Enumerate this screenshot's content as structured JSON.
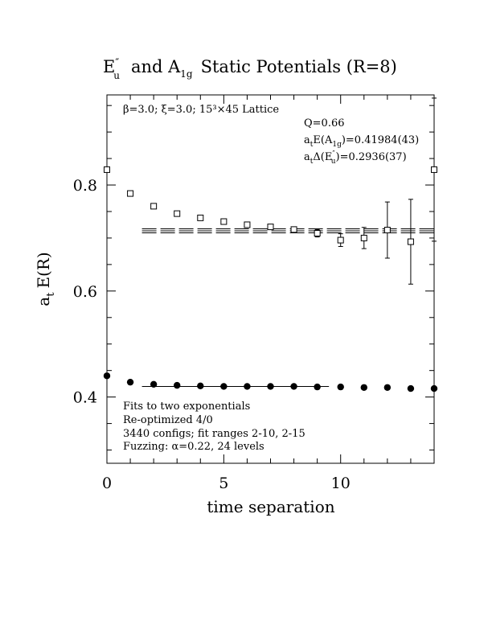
{
  "chart_data": {
    "type": "scatter",
    "title": {
      "main": "E",
      "main_prime": "″",
      "main_sub": "u",
      "mid": "and A",
      "mid_sub": "1g",
      "tail": "Static Potentials (R=8)"
    },
    "xlabel": "time separation",
    "ylabel": {
      "a": "a",
      "sub": "t",
      "rest": "E(R)"
    },
    "xlim": [
      0,
      14
    ],
    "ylim": [
      0.275,
      0.97
    ],
    "xticks": [
      0,
      5,
      10
    ],
    "xtick_labels": [
      "0",
      "5",
      "10"
    ],
    "yticks": [
      0.4,
      0.6,
      0.8
    ],
    "ytick_labels": [
      "0.4",
      "0.6",
      "0.8"
    ],
    "series": [
      {
        "marker": "open-square",
        "x": [
          0,
          1,
          2,
          3,
          4,
          5,
          6,
          7,
          8,
          9,
          10,
          11,
          12,
          13,
          14
        ],
        "y": [
          0.829,
          0.784,
          0.76,
          0.746,
          0.738,
          0.731,
          0.725,
          0.721,
          0.716,
          0.709,
          0.696,
          0.7,
          0.715,
          0.693,
          0.829
        ],
        "err": [
          0.002,
          0.002,
          0.002,
          0.003,
          0.003,
          0.003,
          0.003,
          0.004,
          0.005,
          0.007,
          0.012,
          0.02,
          0.053,
          0.08,
          0.135
        ]
      },
      {
        "marker": "filled-circle",
        "x": [
          0,
          1,
          2,
          3,
          4,
          5,
          6,
          7,
          8,
          9,
          10,
          11,
          12,
          13,
          14
        ],
        "y": [
          0.44,
          0.428,
          0.424,
          0.422,
          0.421,
          0.42,
          0.42,
          0.42,
          0.42,
          0.419,
          0.419,
          0.418,
          0.418,
          0.416,
          0.416
        ],
        "err": [
          0,
          0,
          0,
          0,
          0,
          0,
          0,
          0,
          0,
          0,
          0,
          0,
          0,
          0,
          0
        ]
      }
    ],
    "fit_lines": [
      {
        "style": "dashed-band",
        "y": 0.7136,
        "band": 0.0038,
        "x_range": [
          1.5,
          14
        ]
      },
      {
        "style": "solid",
        "y": 0.41984,
        "band": 0.0004,
        "x_range": [
          1.5,
          9.5
        ]
      }
    ],
    "annotations": {
      "lattice": "β=3.0; ξ=3.0; 15³×45 Lattice",
      "q": "Q=0.66",
      "a1g": {
        "pre": "a",
        "pre_sub": "t",
        "mid": "E(A",
        "mid_sub": "1g",
        "tail": ")=0.41984(43)"
      },
      "gap": {
        "pre": "a",
        "pre_sub": "t",
        "mid": "Δ(E",
        "mid_prime": "″",
        "mid_sub": "u",
        "tail": ")=0.2936(37)"
      },
      "notes": [
        "Fits to two exponentials",
        "Re-optimized 4/0",
        "3440 configs; fit ranges 2-10, 2-15",
        "Fuzzing: α=0.22, 24 levels"
      ]
    }
  }
}
